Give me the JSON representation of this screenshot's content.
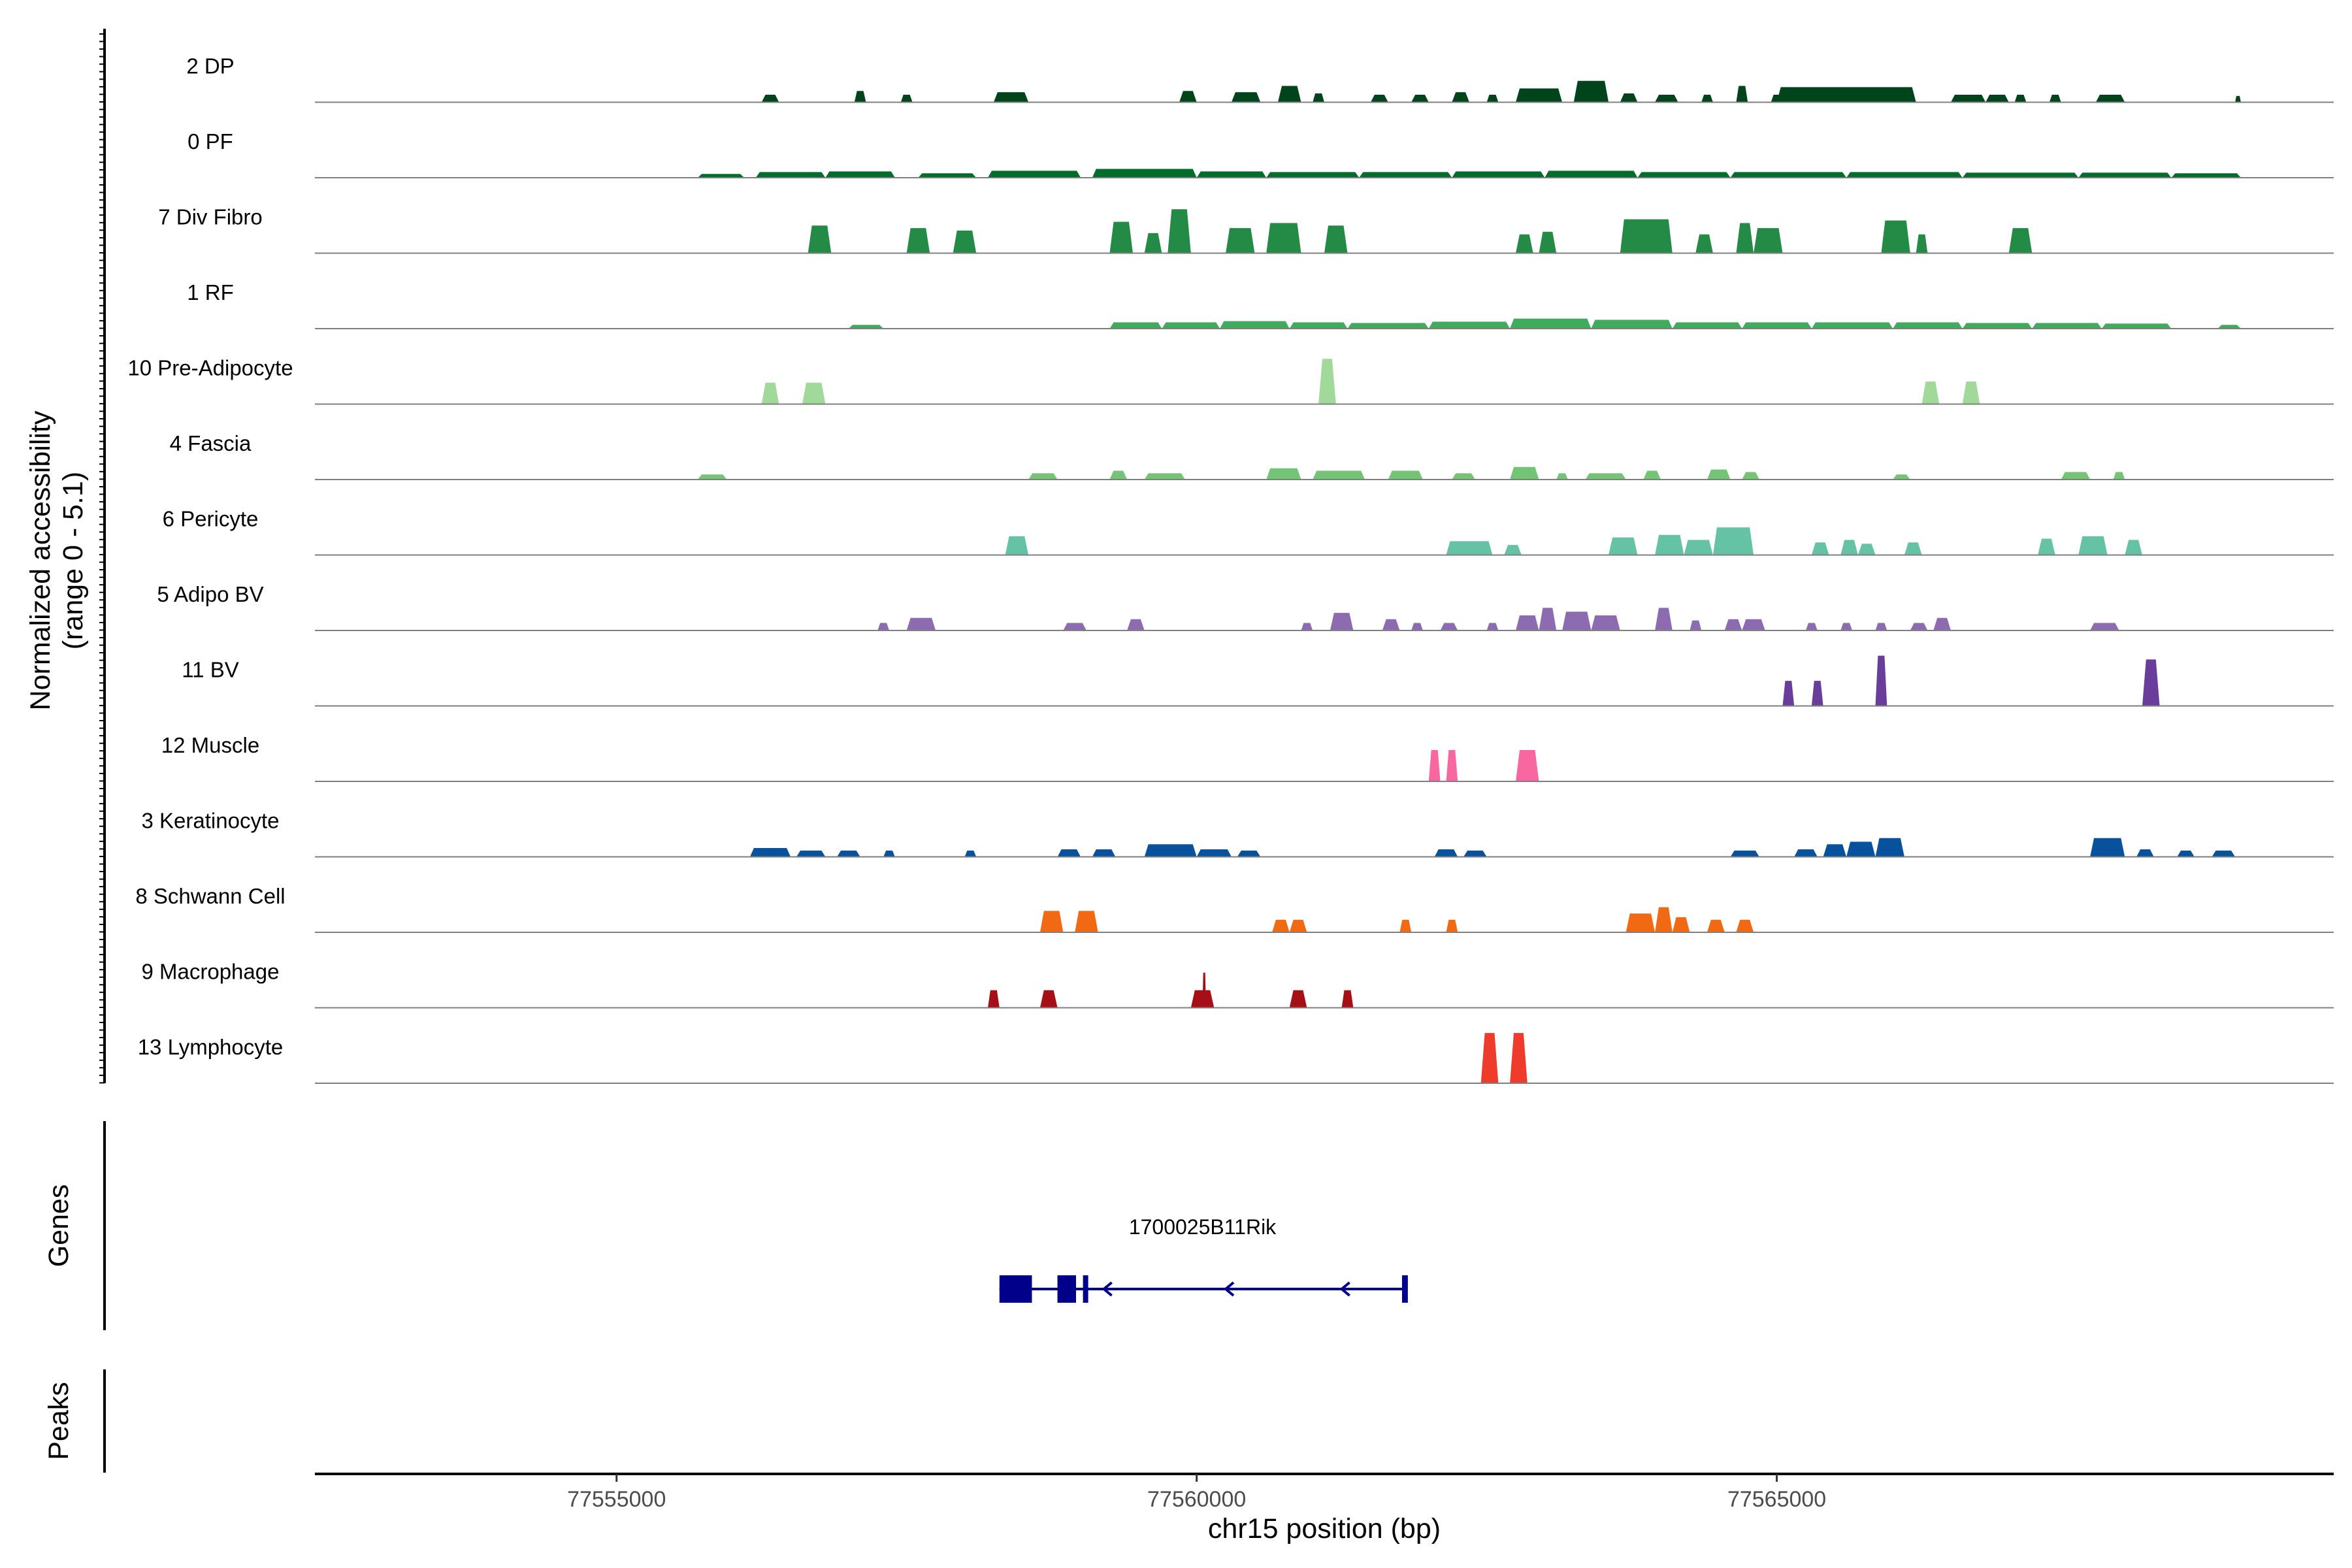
{
  "chart_data": {
    "type": "area",
    "title": "",
    "xlabel": "chr15 position (bp)",
    "ylabel_line1": "Normalized accessibility",
    "ylabel_line2": "(range 0 - 5.1)",
    "y_range": [
      0,
      5.1
    ],
    "x_range": [
      77552400,
      77569800
    ],
    "x_ticks": [
      77555000,
      77560000,
      77565000
    ],
    "x_tick_labels": [
      "77555000",
      "77560000",
      "77565000"
    ],
    "genes_label": "Genes",
    "peaks_label": "Peaks",
    "tracks": [
      {
        "name": "2 DP",
        "color": "#00441b",
        "peaks": [
          [
            77556250,
            77556400,
            0.6
          ],
          [
            77557050,
            77557150,
            0.9
          ],
          [
            77557450,
            77557550,
            0.6
          ],
          [
            77558250,
            77558550,
            0.8
          ],
          [
            77559850,
            77560000,
            0.9
          ],
          [
            77560300,
            77560550,
            0.8
          ],
          [
            77560700,
            77560900,
            1.3
          ],
          [
            77561000,
            77561100,
            0.7
          ],
          [
            77561500,
            77561650,
            0.6
          ],
          [
            77561850,
            77562000,
            0.6
          ],
          [
            77562200,
            77562350,
            0.8
          ],
          [
            77562500,
            77562600,
            0.6
          ],
          [
            77562750,
            77563150,
            1.1
          ],
          [
            77563250,
            77563550,
            1.7
          ],
          [
            77563650,
            77563800,
            0.7
          ],
          [
            77563950,
            77564150,
            0.6
          ],
          [
            77564350,
            77564450,
            0.6
          ],
          [
            77564650,
            77564750,
            1.3
          ],
          [
            77564950,
            77565050,
            0.6
          ],
          [
            77565000,
            77566200,
            1.2
          ],
          [
            77566500,
            77566800,
            0.6
          ],
          [
            77566800,
            77567000,
            0.6
          ],
          [
            77567050,
            77567150,
            0.6
          ],
          [
            77567350,
            77567450,
            0.6
          ],
          [
            77567750,
            77568000,
            0.6
          ],
          [
            77568950,
            77569000,
            0.5
          ]
        ]
      },
      {
        "name": "0 PF",
        "color": "#006d2c",
        "peaks": [
          [
            77555700,
            77556100,
            0.3
          ],
          [
            77556200,
            77556800,
            0.45
          ],
          [
            77556800,
            77557400,
            0.5
          ],
          [
            77557600,
            77558100,
            0.35
          ],
          [
            77558200,
            77559000,
            0.55
          ],
          [
            77559100,
            77560000,
            0.7
          ],
          [
            77560000,
            77560600,
            0.5
          ],
          [
            77560600,
            77561400,
            0.45
          ],
          [
            77561400,
            77562200,
            0.45
          ],
          [
            77562200,
            77563000,
            0.5
          ],
          [
            77563000,
            77563800,
            0.55
          ],
          [
            77563800,
            77564600,
            0.45
          ],
          [
            77564600,
            77565600,
            0.45
          ],
          [
            77565600,
            77566600,
            0.45
          ],
          [
            77566600,
            77567600,
            0.4
          ],
          [
            77567600,
            77568400,
            0.4
          ],
          [
            77568400,
            77569000,
            0.35
          ]
        ]
      },
      {
        "name": "7 Div Fibro",
        "color": "#238b45",
        "peaks": [
          [
            77556650,
            77556850,
            2.2
          ],
          [
            77557500,
            77557700,
            2.0
          ],
          [
            77557900,
            77558100,
            1.8
          ],
          [
            77559250,
            77559450,
            2.5
          ],
          [
            77559550,
            77559700,
            1.6
          ],
          [
            77559750,
            77559950,
            3.5
          ],
          [
            77560250,
            77560500,
            2.0
          ],
          [
            77560600,
            77560900,
            2.4
          ],
          [
            77561100,
            77561300,
            2.2
          ],
          [
            77562750,
            77562900,
            1.5
          ],
          [
            77562950,
            77563100,
            1.7
          ],
          [
            77563650,
            77564100,
            2.7
          ],
          [
            77564300,
            77564450,
            1.5
          ],
          [
            77564650,
            77564800,
            2.4
          ],
          [
            77564800,
            77565050,
            2.0
          ],
          [
            77565900,
            77566150,
            2.6
          ],
          [
            77566200,
            77566300,
            1.5
          ],
          [
            77567000,
            77567200,
            2.0
          ]
        ]
      },
      {
        "name": "1 RF",
        "color": "#41ab5d",
        "peaks": [
          [
            77557000,
            77557300,
            0.3
          ],
          [
            77559250,
            77559700,
            0.5
          ],
          [
            77559700,
            77560200,
            0.5
          ],
          [
            77560200,
            77560800,
            0.6
          ],
          [
            77560800,
            77561300,
            0.5
          ],
          [
            77561300,
            77562000,
            0.45
          ],
          [
            77562000,
            77562700,
            0.55
          ],
          [
            77562700,
            77563400,
            0.8
          ],
          [
            77563400,
            77564100,
            0.7
          ],
          [
            77564100,
            77564700,
            0.5
          ],
          [
            77564700,
            77565300,
            0.5
          ],
          [
            77565300,
            77566000,
            0.5
          ],
          [
            77566000,
            77566600,
            0.5
          ],
          [
            77566600,
            77567200,
            0.45
          ],
          [
            77567200,
            77567800,
            0.45
          ],
          [
            77567800,
            77568400,
            0.4
          ],
          [
            77568800,
            77569000,
            0.3
          ]
        ]
      },
      {
        "name": "10 Pre-Adipocyte",
        "color": "#a1d99b",
        "peaks": [
          [
            77556250,
            77556400,
            1.7
          ],
          [
            77556600,
            77556800,
            1.7
          ],
          [
            77561050,
            77561200,
            3.6
          ],
          [
            77566250,
            77566400,
            1.8
          ],
          [
            77566600,
            77566750,
            1.8
          ]
        ]
      },
      {
        "name": "4 Fascia",
        "color": "#74c476",
        "peaks": [
          [
            77555700,
            77555950,
            0.4
          ],
          [
            77558550,
            77558800,
            0.5
          ],
          [
            77559250,
            77559400,
            0.7
          ],
          [
            77559550,
            77559900,
            0.5
          ],
          [
            77560600,
            77560900,
            0.9
          ],
          [
            77561000,
            77561450,
            0.7
          ],
          [
            77561650,
            77561950,
            0.7
          ],
          [
            77562200,
            77562400,
            0.5
          ],
          [
            77562700,
            77562950,
            1.0
          ],
          [
            77563100,
            77563200,
            0.5
          ],
          [
            77563350,
            77563700,
            0.5
          ],
          [
            77563850,
            77564000,
            0.7
          ],
          [
            77564400,
            77564600,
            0.8
          ],
          [
            77564700,
            77564850,
            0.6
          ],
          [
            77566000,
            77566150,
            0.4
          ],
          [
            77567450,
            77567700,
            0.6
          ],
          [
            77567900,
            77568000,
            0.6
          ]
        ]
      },
      {
        "name": "6 Pericyte",
        "color": "#66c2a4",
        "peaks": [
          [
            77558350,
            77558550,
            1.5
          ],
          [
            77562150,
            77562550,
            1.1
          ],
          [
            77562650,
            77562800,
            0.8
          ],
          [
            77563550,
            77563800,
            1.4
          ],
          [
            77563950,
            77564200,
            1.6
          ],
          [
            77564200,
            77564450,
            1.2
          ],
          [
            77564450,
            77564800,
            2.2
          ],
          [
            77565300,
            77565450,
            1.0
          ],
          [
            77565550,
            77565700,
            1.2
          ],
          [
            77565700,
            77565850,
            0.9
          ],
          [
            77566100,
            77566250,
            1.0
          ],
          [
            77567250,
            77567400,
            1.3
          ],
          [
            77567600,
            77567850,
            1.5
          ],
          [
            77568000,
            77568150,
            1.2
          ]
        ]
      },
      {
        "name": "5 Adipo BV",
        "color": "#8c6bb1",
        "peaks": [
          [
            77557250,
            77557350,
            0.6
          ],
          [
            77557500,
            77557750,
            1.0
          ],
          [
            77558850,
            77559050,
            0.6
          ],
          [
            77559400,
            77559550,
            0.9
          ],
          [
            77560900,
            77561000,
            0.6
          ],
          [
            77561150,
            77561350,
            1.4
          ],
          [
            77561600,
            77561750,
            0.9
          ],
          [
            77561850,
            77561950,
            0.6
          ],
          [
            77562100,
            77562250,
            0.6
          ],
          [
            77562500,
            77562600,
            0.6
          ],
          [
            77562750,
            77562950,
            1.2
          ],
          [
            77562950,
            77563100,
            1.8
          ],
          [
            77563150,
            77563400,
            1.5
          ],
          [
            77563400,
            77563650,
            1.2
          ],
          [
            77563950,
            77564100,
            1.8
          ],
          [
            77564250,
            77564350,
            0.8
          ],
          [
            77564550,
            77564700,
            0.9
          ],
          [
            77564700,
            77564900,
            0.9
          ],
          [
            77565250,
            77565350,
            0.6
          ],
          [
            77565550,
            77565650,
            0.6
          ],
          [
            77565850,
            77565950,
            0.6
          ],
          [
            77566150,
            77566300,
            0.6
          ],
          [
            77566350,
            77566500,
            1.0
          ],
          [
            77567700,
            77567950,
            0.6
          ]
        ]
      },
      {
        "name": "11 BV",
        "color": "#6a3d9a",
        "peaks": [
          [
            77565050,
            77565150,
            2.0
          ],
          [
            77565300,
            77565400,
            2.0
          ],
          [
            77565850,
            77565950,
            4.0
          ],
          [
            77568150,
            77568300,
            3.7
          ]
        ]
      },
      {
        "name": "12 Muscle",
        "color": "#f768a1",
        "peaks": [
          [
            77562000,
            77562100,
            2.5
          ],
          [
            77562150,
            77562250,
            2.5
          ],
          [
            77562750,
            77562950,
            2.5
          ]
        ]
      },
      {
        "name": "3 Keratinocyte",
        "color": "#08519c",
        "peaks": [
          [
            77556150,
            77556500,
            0.7
          ],
          [
            77556550,
            77556800,
            0.5
          ],
          [
            77556900,
            77557100,
            0.5
          ],
          [
            77557300,
            77557400,
            0.5
          ],
          [
            77558000,
            77558100,
            0.5
          ],
          [
            77558800,
            77559000,
            0.6
          ],
          [
            77559100,
            77559300,
            0.6
          ],
          [
            77559550,
            77560000,
            1.0
          ],
          [
            77560000,
            77560300,
            0.6
          ],
          [
            77560350,
            77560550,
            0.5
          ],
          [
            77562050,
            77562250,
            0.6
          ],
          [
            77562300,
            77562500,
            0.5
          ],
          [
            77564600,
            77564850,
            0.5
          ],
          [
            77565150,
            77565350,
            0.6
          ],
          [
            77565400,
            77565600,
            1.0
          ],
          [
            77565600,
            77565850,
            1.2
          ],
          [
            77565850,
            77566100,
            1.5
          ],
          [
            77567700,
            77568000,
            1.5
          ],
          [
            77568100,
            77568250,
            0.6
          ],
          [
            77568450,
            77568600,
            0.5
          ],
          [
            77568750,
            77568950,
            0.5
          ]
        ]
      },
      {
        "name": "8 Schwann Cell",
        "color": "#f16913",
        "peaks": [
          [
            77558650,
            77558850,
            1.7
          ],
          [
            77558950,
            77559150,
            1.7
          ],
          [
            77560650,
            77560800,
            1.0
          ],
          [
            77560800,
            77560950,
            1.0
          ],
          [
            77561750,
            77561850,
            1.0
          ],
          [
            77562150,
            77562250,
            1.0
          ],
          [
            77563700,
            77563950,
            1.5
          ],
          [
            77563950,
            77564100,
            2.0
          ],
          [
            77564100,
            77564250,
            1.2
          ],
          [
            77564400,
            77564550,
            1.0
          ],
          [
            77564650,
            77564800,
            1.0
          ]
        ]
      },
      {
        "name": "9 Macrophage",
        "color": "#a50f15",
        "peaks": [
          [
            77558200,
            77558300,
            1.4
          ],
          [
            77558650,
            77558800,
            1.4
          ],
          [
            77559950,
            77560150,
            1.4
          ],
          [
            77560050,
            77560080,
            2.8
          ],
          [
            77560800,
            77560950,
            1.4
          ],
          [
            77561250,
            77561350,
            1.4
          ]
        ]
      },
      {
        "name": "13 Lymphocyte",
        "color": "#ef3b2c",
        "peaks": [
          [
            77562450,
            77562600,
            4.0
          ],
          [
            77562700,
            77562850,
            4.0
          ]
        ]
      }
    ],
    "gene": {
      "name": "1700025B11Rik",
      "strand": "-",
      "start": 77558300,
      "end": 77561800,
      "color": "#00008b",
      "exons": [
        [
          77558300,
          77558580
        ],
        [
          77558800,
          77558960
        ],
        [
          77559020,
          77559060
        ],
        [
          77561770,
          77561820
        ]
      ],
      "arrows": [
        77559200,
        77560250,
        77561250
      ]
    }
  }
}
